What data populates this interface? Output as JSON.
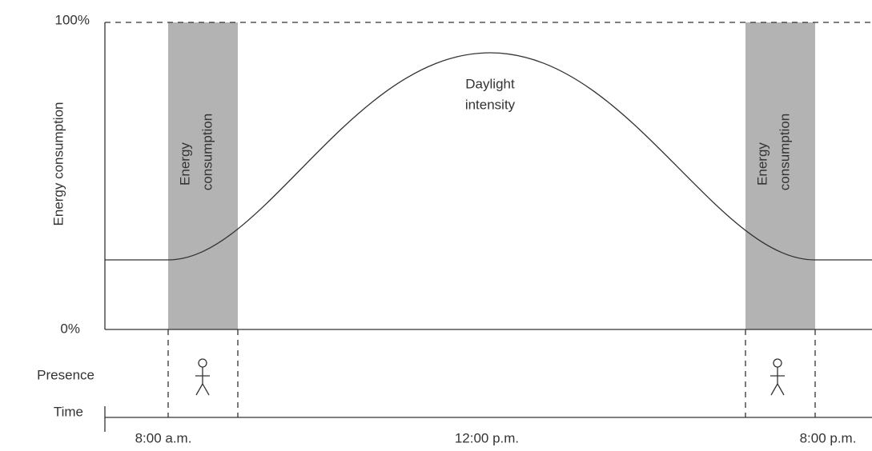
{
  "y_axis": {
    "label": "Energy consumption",
    "max_label": "100%",
    "min_label": "0%"
  },
  "curve_label": [
    "Daylight",
    "intensity"
  ],
  "bands": [
    {
      "label": [
        "Energy",
        "consumption"
      ]
    },
    {
      "label": [
        "Energy",
        "consumption"
      ]
    }
  ],
  "rows": {
    "presence": "Presence",
    "time": "Time"
  },
  "time_labels": [
    "8:00 a.m.",
    "12:00 p.m.",
    "8:00 p.m."
  ]
}
